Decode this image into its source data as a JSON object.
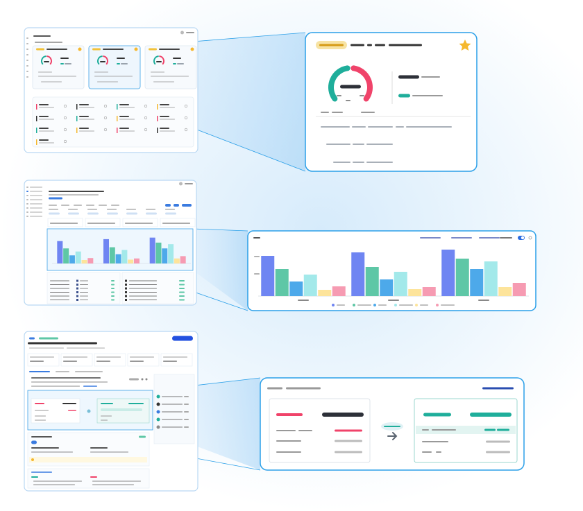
{
  "chart_data": {
    "type": "bar",
    "categories": [
      null,
      null,
      null
    ],
    "series": [
      {
        "color": "#6f85f2",
        "values": [
          58,
          63,
          67
        ]
      },
      {
        "color": "#5ec7a6",
        "values": [
          39,
          42,
          54
        ]
      },
      {
        "color": "#4da9ea",
        "values": [
          21,
          24,
          39
        ]
      },
      {
        "color": "#a3e9ea",
        "values": [
          31,
          35,
          50
        ]
      },
      {
        "color": "#fde49b",
        "values": [
          9,
          10,
          13
        ]
      },
      {
        "color": "#f69bb2",
        "values": [
          14,
          13,
          19
        ]
      }
    ],
    "ylim": [
      0,
      70
    ]
  }
}
